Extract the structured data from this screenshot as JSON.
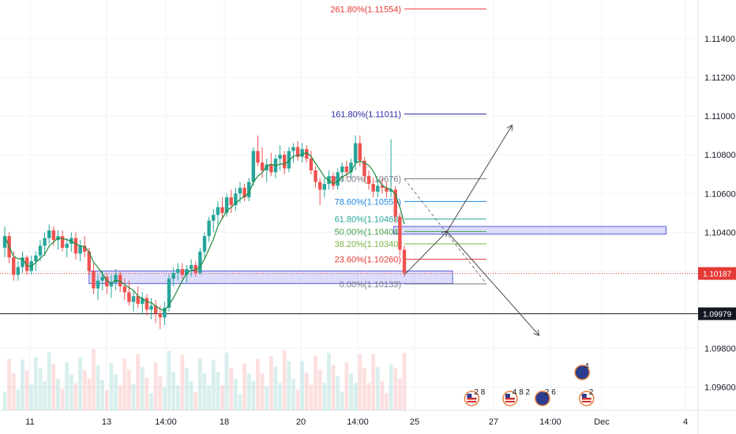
{
  "chart_data": {
    "type": "candlestick",
    "y_ticks": [
      "1.11400",
      "1.11200",
      "1.11000",
      "1.10800",
      "1.10600",
      "1.10400",
      "1.10200",
      "1.09800",
      "1.09600"
    ],
    "x_ticks": [
      "11",
      "13",
      "14:00",
      "18",
      "20",
      "14:00",
      "25",
      "27",
      "14:00",
      "Dec",
      "4"
    ],
    "ylim": [
      1.0948,
      1.116
    ],
    "price_labels": [
      {
        "text": "1.10187",
        "value": 1.10187,
        "color": "#e53935"
      },
      {
        "text": "1.09979",
        "value": 1.09979,
        "color": "#131722"
      }
    ],
    "fib_levels": [
      {
        "label": "261.80%(1.11554)",
        "value": 1.11554,
        "color": "#e53935"
      },
      {
        "label": "161.80%(1.11011)",
        "value": 1.11011,
        "color": "#2c2ca8"
      },
      {
        "label": "100.00%(1.10676)",
        "value": 1.10676,
        "color": "#787b86"
      },
      {
        "label": "78.60%(1.10559)",
        "value": 1.10559,
        "color": "#1e88e5"
      },
      {
        "label": "61.80%(1.10468)",
        "value": 1.10468,
        "color": "#26a69a"
      },
      {
        "label": "50.00%(1.10404)",
        "value": 1.10404,
        "color": "#43a047"
      },
      {
        "label": "38.20%(1.10340)",
        "value": 1.1034,
        "color": "#7cb342"
      },
      {
        "label": "23.60%(1.10260)",
        "value": 1.1026,
        "color": "#e53935"
      },
      {
        "label": "0.00%(1.10133)",
        "value": 1.10133,
        "color": "#787b86"
      }
    ],
    "zones": [
      {
        "from": 1.10135,
        "to": 1.102,
        "start": 0.121,
        "end": 0.615
      },
      {
        "from": 1.1039,
        "to": 1.1043,
        "start": 0.535,
        "end": 0.905
      }
    ],
    "candles": [
      [
        1.1032,
        1.1043,
        1.1027,
        1.1038
      ],
      [
        1.1038,
        1.104,
        1.1024,
        1.1027
      ],
      [
        1.1027,
        1.103,
        1.1015,
        1.1018
      ],
      [
        1.1018,
        1.1025,
        1.1015,
        1.1022
      ],
      [
        1.1022,
        1.103,
        1.1019,
        1.1027
      ],
      [
        1.1027,
        1.1028,
        1.1018,
        1.102
      ],
      [
        1.102,
        1.1028,
        1.1018,
        1.1025
      ],
      [
        1.1025,
        1.103,
        1.102,
        1.1028
      ],
      [
        1.1028,
        1.1036,
        1.1025,
        1.1033
      ],
      [
        1.1033,
        1.104,
        1.1028,
        1.1037
      ],
      [
        1.1037,
        1.1044,
        1.1034,
        1.1041
      ],
      [
        1.1041,
        1.1043,
        1.1033,
        1.1036
      ],
      [
        1.1036,
        1.1041,
        1.1031,
        1.1038
      ],
      [
        1.1038,
        1.1041,
        1.103,
        1.1032
      ],
      [
        1.1032,
        1.1037,
        1.1027,
        1.1034
      ],
      [
        1.1034,
        1.104,
        1.103,
        1.1037
      ],
      [
        1.1037,
        1.104,
        1.1026,
        1.1029
      ],
      [
        1.1029,
        1.1036,
        1.1025,
        1.1033
      ],
      [
        1.1033,
        1.1038,
        1.1027,
        1.103
      ],
      [
        1.103,
        1.1032,
        1.1018,
        1.102
      ],
      [
        1.102,
        1.1024,
        1.1008,
        1.1011
      ],
      [
        1.1011,
        1.1018,
        1.1005,
        1.1015
      ],
      [
        1.1015,
        1.102,
        1.101,
        1.1017
      ],
      [
        1.1017,
        1.1019,
        1.1008,
        1.1012
      ],
      [
        1.1012,
        1.1018,
        1.1006,
        1.1014
      ],
      [
        1.1014,
        1.1021,
        1.101,
        1.1018
      ],
      [
        1.1018,
        1.102,
        1.1009,
        1.1012
      ],
      [
        1.1012,
        1.1016,
        1.1005,
        1.1009
      ],
      [
        1.1009,
        1.1015,
        1.1002,
        1.1004
      ],
      [
        1.1004,
        1.101,
        1.0999,
        1.1007
      ],
      [
        1.1007,
        1.1012,
        1.1001,
        1.1003
      ],
      [
        1.1003,
        1.1009,
        1.0998,
        1.1006
      ],
      [
        1.1006,
        1.1008,
        1.0997,
        1.1
      ],
      [
        1.1,
        1.1006,
        1.0995,
        1.1002
      ],
      [
        1.1002,
        1.1005,
        1.0993,
        1.0998
      ],
      [
        1.0998,
        1.1002,
        1.099,
        1.0996
      ],
      [
        1.0996,
        1.1004,
        1.0992,
        1.1001
      ],
      [
        1.1001,
        1.1018,
        1.0999,
        1.1016
      ],
      [
        1.1016,
        1.1022,
        1.1012,
        1.1019
      ],
      [
        1.1019,
        1.1024,
        1.1015,
        1.1021
      ],
      [
        1.1021,
        1.1024,
        1.1016,
        1.1018
      ],
      [
        1.1018,
        1.1023,
        1.1014,
        1.1021
      ],
      [
        1.1021,
        1.1026,
        1.1017,
        1.1023
      ],
      [
        1.1023,
        1.1025,
        1.1017,
        1.1019
      ],
      [
        1.1019,
        1.1032,
        1.1018,
        1.103
      ],
      [
        1.103,
        1.104,
        1.1027,
        1.1038
      ],
      [
        1.1038,
        1.1048,
        1.1035,
        1.1046
      ],
      [
        1.1046,
        1.1052,
        1.104,
        1.1049
      ],
      [
        1.1049,
        1.1056,
        1.1044,
        1.1053
      ],
      [
        1.1053,
        1.1058,
        1.1047,
        1.105
      ],
      [
        1.105,
        1.106,
        1.1048,
        1.1058
      ],
      [
        1.1058,
        1.1062,
        1.105,
        1.1054
      ],
      [
        1.1054,
        1.1063,
        1.1051,
        1.106
      ],
      [
        1.106,
        1.1066,
        1.1055,
        1.1063
      ],
      [
        1.1063,
        1.1065,
        1.1056,
        1.1058
      ],
      [
        1.1058,
        1.1068,
        1.1056,
        1.1066
      ],
      [
        1.1066,
        1.1084,
        1.1064,
        1.1082
      ],
      [
        1.1082,
        1.109,
        1.1074,
        1.1076
      ],
      [
        1.1076,
        1.1084,
        1.1068,
        1.1072
      ],
      [
        1.1072,
        1.1078,
        1.1066,
        1.1075
      ],
      [
        1.1075,
        1.1081,
        1.1069,
        1.1071
      ],
      [
        1.1071,
        1.108,
        1.1068,
        1.1078
      ],
      [
        1.1078,
        1.1085,
        1.1072,
        1.108
      ],
      [
        1.108,
        1.1082,
        1.107,
        1.1073
      ],
      [
        1.1073,
        1.1084,
        1.1071,
        1.1082
      ],
      [
        1.1082,
        1.1086,
        1.1076,
        1.1084
      ],
      [
        1.1084,
        1.1087,
        1.1077,
        1.1079
      ],
      [
        1.1079,
        1.1086,
        1.1076,
        1.1083
      ],
      [
        1.1083,
        1.1085,
        1.1076,
        1.1078
      ],
      [
        1.1078,
        1.1082,
        1.107,
        1.1072
      ],
      [
        1.1072,
        1.1074,
        1.1063,
        1.1066
      ],
      [
        1.1066,
        1.1068,
        1.1054,
        1.1062
      ],
      [
        1.1062,
        1.1068,
        1.1058,
        1.1065
      ],
      [
        1.1065,
        1.1072,
        1.1062,
        1.1069
      ],
      [
        1.1069,
        1.1071,
        1.1062,
        1.1064
      ],
      [
        1.1064,
        1.1073,
        1.1062,
        1.1071
      ],
      [
        1.1071,
        1.1076,
        1.1066,
        1.1074
      ],
      [
        1.1074,
        1.1077,
        1.1068,
        1.1071
      ],
      [
        1.1071,
        1.1078,
        1.1068,
        1.1076
      ],
      [
        1.1076,
        1.109,
        1.1072,
        1.1086
      ],
      [
        1.1086,
        1.109,
        1.1074,
        1.1077
      ],
      [
        1.1077,
        1.1079,
        1.1066,
        1.1069
      ],
      [
        1.1069,
        1.1072,
        1.1062,
        1.1065
      ],
      [
        1.1065,
        1.1068,
        1.1058,
        1.1061
      ],
      [
        1.1061,
        1.1067,
        1.1058,
        1.1064
      ],
      [
        1.1064,
        1.1068,
        1.106,
        1.1063
      ],
      [
        1.1063,
        1.1066,
        1.1058,
        1.1061
      ],
      [
        1.1061,
        1.1088,
        1.1058,
        1.1062
      ],
      [
        1.1062,
        1.1064,
        1.1045,
        1.1048
      ],
      [
        1.1048,
        1.105,
        1.1028,
        1.1031
      ],
      [
        1.1031,
        1.1033,
        1.1017,
        1.1019
      ]
    ],
    "events": [
      {
        "flag": "us",
        "count": "2 8",
        "x": 0.641
      },
      {
        "flag": "us",
        "count": "4 8 2",
        "x": 0.693
      },
      {
        "flag": "eu",
        "count": "2 6",
        "x": 0.737
      },
      {
        "flag": "eu",
        "count": "4",
        "x": 0.791
      },
      {
        "flag": "us",
        "count": "2",
        "x": 0.797
      }
    ]
  }
}
